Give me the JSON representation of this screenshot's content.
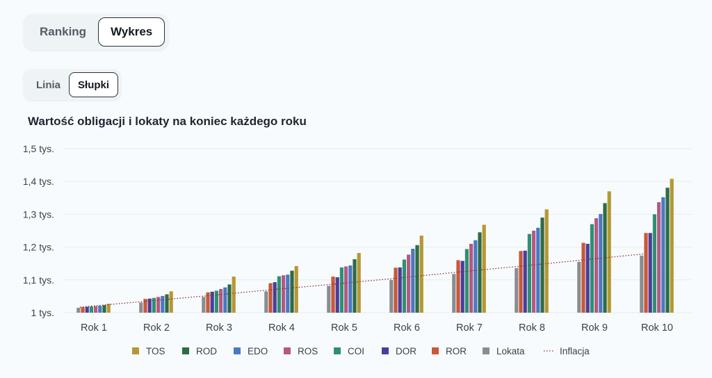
{
  "view_tabs": [
    {
      "label": "Ranking",
      "active": false
    },
    {
      "label": "Wykres",
      "active": true
    }
  ],
  "chart_tabs": [
    {
      "label": "Linia",
      "active": false
    },
    {
      "label": "Słupki",
      "active": true
    }
  ],
  "chart_data": {
    "type": "bar",
    "title": "Wartość obligacji i lokaty na koniec każdego roku",
    "xlabel": "",
    "ylabel": "",
    "ylim": [
      1000,
      1500
    ],
    "y_ticks": [
      {
        "value": 1000,
        "label": "1 tys."
      },
      {
        "value": 1100,
        "label": "1,1 tys."
      },
      {
        "value": 1200,
        "label": "1,2 tys."
      },
      {
        "value": 1300,
        "label": "1,3 tys."
      },
      {
        "value": 1400,
        "label": "1,4 tys."
      },
      {
        "value": 1500,
        "label": "1,5 tys."
      }
    ],
    "grid": true,
    "legend_position": "bottom",
    "categories": [
      "Rok 1",
      "Rok 2",
      "Rok 3",
      "Rok 4",
      "Rok 5",
      "Rok 6",
      "Rok 7",
      "Rok 8",
      "Rok 9",
      "Rok 10"
    ],
    "series": [
      {
        "name": "Lokata",
        "color": "#8a8d90",
        "values": [
          1015,
          1031,
          1048,
          1065,
          1082,
          1100,
          1118,
          1136,
          1155,
          1174
        ]
      },
      {
        "name": "ROR",
        "color": "#c8583a",
        "values": [
          1017,
          1042,
          1062,
          1090,
          1110,
          1137,
          1160,
          1188,
          1213,
          1243
        ]
      },
      {
        "name": "DOR",
        "color": "#4b3e99",
        "values": [
          1018,
          1043,
          1064,
          1093,
          1108,
          1138,
          1158,
          1189,
          1210,
          1243
        ]
      },
      {
        "name": "COI",
        "color": "#2f8f73",
        "values": [
          1019,
          1045,
          1067,
          1111,
          1138,
          1162,
          1194,
          1240,
          1270,
          1300
        ]
      },
      {
        "name": "ROS",
        "color": "#b35a80",
        "values": [
          1020,
          1048,
          1072,
          1114,
          1141,
          1177,
          1210,
          1250,
          1288,
          1337
        ]
      },
      {
        "name": "EDO",
        "color": "#4a79c4",
        "values": [
          1021,
          1051,
          1077,
          1116,
          1144,
          1195,
          1221,
          1259,
          1301,
          1352
        ]
      },
      {
        "name": "ROD",
        "color": "#2f6b45",
        "values": [
          1023,
          1056,
          1086,
          1128,
          1163,
          1206,
          1245,
          1290,
          1334,
          1381
        ]
      },
      {
        "name": "TOS",
        "color": "#b59735",
        "values": [
          1027,
          1065,
          1110,
          1142,
          1182,
          1235,
          1268,
          1315,
          1370,
          1408
        ]
      }
    ],
    "inflation": {
      "name": "Inflacja",
      "color": "#8b2b2b",
      "values": [
        1017,
        1034,
        1051,
        1069,
        1086,
        1104,
        1123,
        1141,
        1160,
        1179
      ]
    },
    "legend": [
      "TOS",
      "ROD",
      "EDO",
      "ROS",
      "COI",
      "DOR",
      "ROR",
      "Lokata",
      "Inflacja"
    ]
  }
}
